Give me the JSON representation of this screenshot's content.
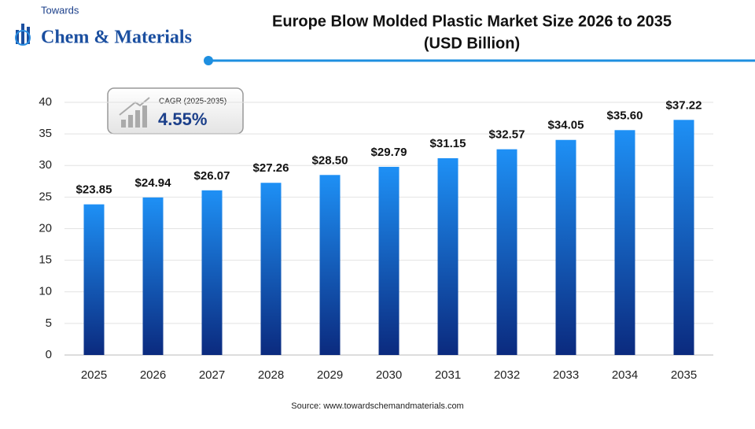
{
  "header": {
    "brand_top": "Towards",
    "brand_main": "Chem & Materials"
  },
  "chart_data": {
    "type": "bar",
    "title": "Europe Blow Molded Plastic Market Size 2026 to 2035",
    "subtitle": "(USD Billion)",
    "categories": [
      "2025",
      "2026",
      "2027",
      "2028",
      "2029",
      "2030",
      "2031",
      "2032",
      "2033",
      "2034",
      "2035"
    ],
    "values": [
      23.85,
      24.94,
      26.07,
      27.26,
      28.5,
      29.79,
      31.15,
      32.57,
      34.05,
      35.6,
      37.22
    ],
    "value_labels": [
      "$23.85",
      "$24.94",
      "$26.07",
      "$27.26",
      "$28.50",
      "$29.79",
      "$31.15",
      "$32.57",
      "$34.05",
      "$35.60",
      "$37.22"
    ],
    "color": [
      "#1e90f5",
      "#0b2a7e"
    ],
    "ylim": [
      0,
      40
    ],
    "yticks": [
      0,
      5,
      10,
      15,
      20,
      25,
      30,
      35,
      40
    ],
    "grid": true,
    "annotation": {
      "label": "CAGR (2025-2035)",
      "value": "4.55%"
    },
    "source": "Source: www.towardschemandmaterials.com"
  }
}
